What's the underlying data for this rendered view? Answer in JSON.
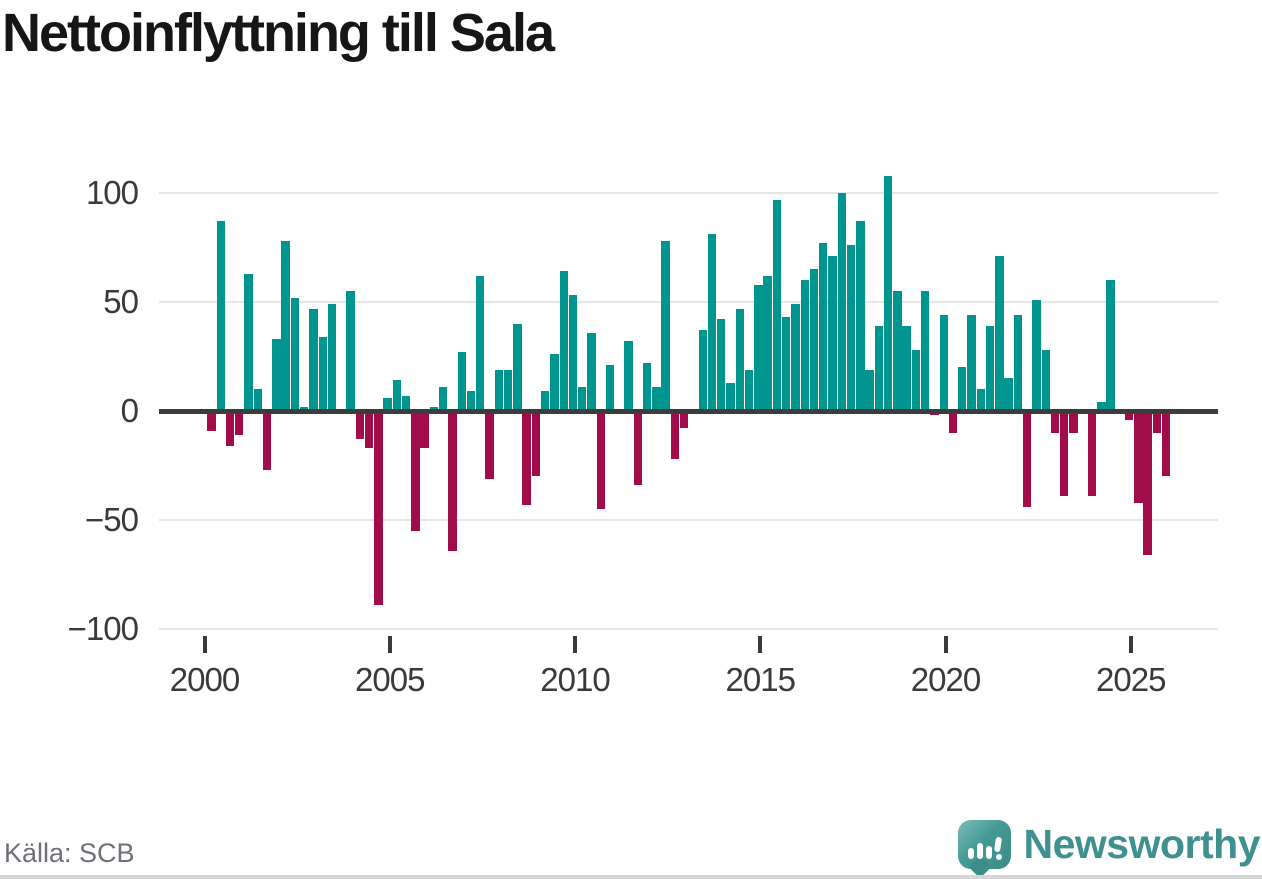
{
  "title": "Nettoinflyttning till Sala",
  "source": "Källa: SCB",
  "branding": {
    "name": "Newsworthy"
  },
  "colors": {
    "positive_bar": "#00968f",
    "negative_bar": "#a00d4a",
    "zero_line": "#3c3c3c",
    "gridline": "#e6e6e6",
    "axis_text": "#3a3a3a",
    "title_text": "#161616",
    "source_text": "#6f6f78",
    "brand": "#3f918f"
  },
  "chart_data": {
    "type": "bar",
    "title": "Nettoinflyttning till Sala",
    "xlabel": "",
    "ylabel": "",
    "frequency": "quarterly",
    "start_year": 2000,
    "ylim": [
      -108,
      112
    ],
    "grid": true,
    "y_ticks": [
      {
        "value": 100,
        "label": "100"
      },
      {
        "value": 50,
        "label": "50"
      },
      {
        "value": 0,
        "label": "0"
      },
      {
        "value": -50,
        "label": "−50"
      },
      {
        "value": -100,
        "label": "−100"
      }
    ],
    "x_ticks": [
      {
        "year": 2000,
        "label": "2000"
      },
      {
        "year": 2005,
        "label": "2005"
      },
      {
        "year": 2010,
        "label": "2010"
      },
      {
        "year": 2015,
        "label": "2015"
      },
      {
        "year": 2020,
        "label": "2020"
      },
      {
        "year": 2025,
        "label": "2025"
      }
    ],
    "values": [
      -9,
      87,
      -16,
      -11,
      63,
      10,
      -27,
      33,
      78,
      52,
      2,
      47,
      34,
      49,
      0,
      55,
      -13,
      -17,
      -89,
      6,
      14,
      7,
      -55,
      -17,
      2,
      11,
      -64,
      27,
      9,
      62,
      -31,
      19,
      19,
      40,
      -43,
      -30,
      9,
      26,
      64,
      53,
      11,
      36,
      -45,
      21,
      0,
      32,
      -34,
      22,
      11,
      78,
      -22,
      -8,
      0,
      37,
      81,
      42,
      13,
      47,
      19,
      58,
      62,
      97,
      43,
      49,
      60,
      65,
      77,
      71,
      100,
      76,
      87,
      19,
      39,
      108,
      55,
      39,
      28,
      55,
      -2,
      44,
      -10,
      20,
      44,
      10,
      39,
      71,
      15,
      44,
      -44,
      51,
      28,
      -10,
      -39,
      -10,
      0,
      -39,
      4,
      60,
      1,
      -4,
      -42,
      -66,
      -10,
      -30
    ]
  }
}
